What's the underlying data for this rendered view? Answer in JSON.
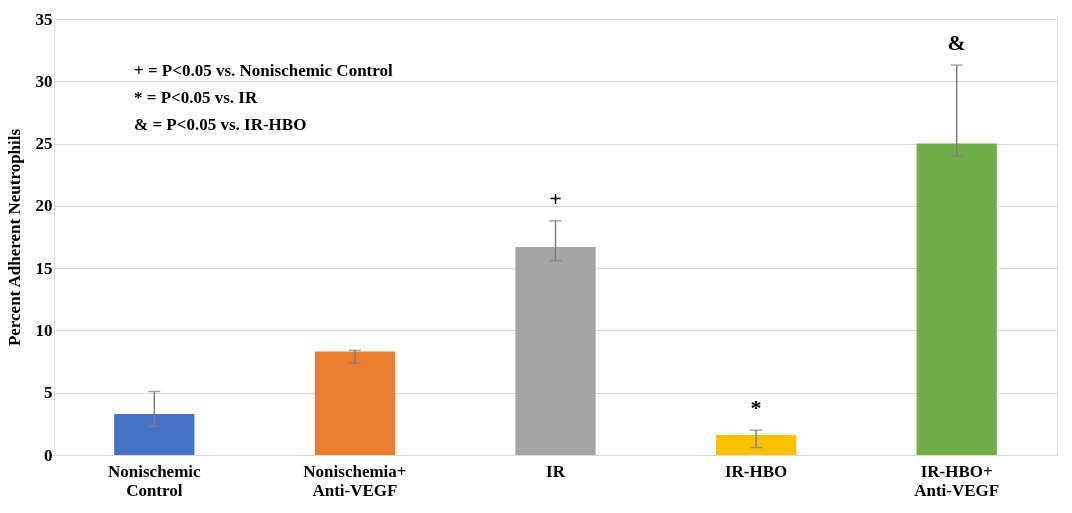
{
  "chart_data": {
    "type": "bar",
    "ylabel": "Percent Adherent Neutrophils",
    "categories": [
      "Nonischemic Control",
      "Nonischemia+ Anti-VEGF",
      "IR",
      "IR-HBO",
      "IR-HBO+ Anti-VEGF"
    ],
    "values": [
      3.3,
      8.3,
      16.7,
      1.6,
      25.0
    ],
    "colors": [
      "#4472c4",
      "#ed7d31",
      "#a5a5a5",
      "#ffc000",
      "#70ad47"
    ],
    "errors": [
      [
        2.3,
        5.1
      ],
      [
        7.4,
        8.4
      ],
      [
        15.6,
        18.8
      ],
      [
        0.6,
        2.0
      ],
      [
        24.0,
        31.3
      ]
    ],
    "ylim": [
      0,
      35
    ],
    "yticks": [
      0,
      5,
      10,
      15,
      20,
      25,
      30,
      35
    ],
    "grid": "y",
    "legend": false,
    "annotations": [
      "+ = P<0.05 vs. Nonischemic Control",
      "* = P<0.05 vs. IR",
      "& = P<0.05 vs. IR-HBO",
      {
        "text": "+",
        "x": "IR",
        "y": 18.8
      },
      {
        "text": "*",
        "x": "IR-HBO",
        "y": 2.0
      },
      {
        "text": "&",
        "x": "IR-HBO+ Anti-VEGF",
        "y": 31.3
      }
    ]
  }
}
